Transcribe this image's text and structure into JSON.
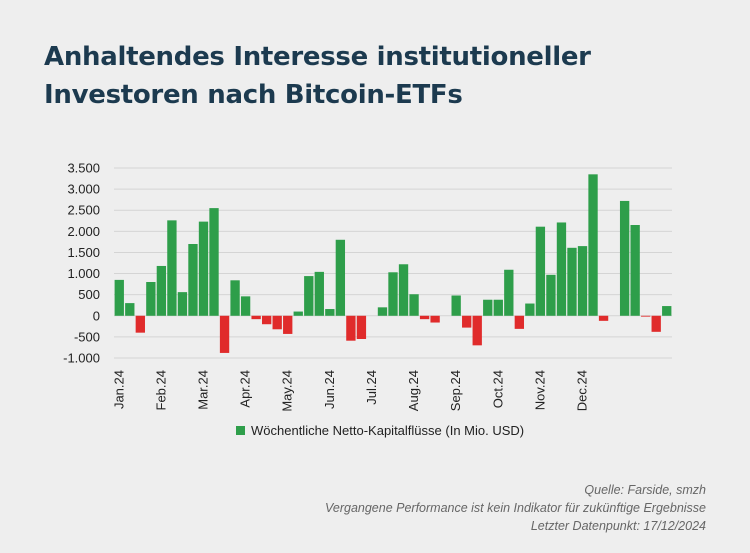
{
  "title": "Anhaltendes Interesse institutioneller Investoren nach Bitcoin-ETFs",
  "colors": {
    "positive": "#2e9e4a",
    "negative": "#e02b2b",
    "title": "#1c3a4f"
  },
  "chart_data": {
    "type": "bar",
    "title": "",
    "xlabel": "",
    "ylabel": "",
    "ylim": [
      -1000,
      3500
    ],
    "yticks": [
      -1000,
      -500,
      0,
      500,
      1000,
      1500,
      2000,
      2500,
      3000,
      3500
    ],
    "ytick_labels": [
      "-1.000",
      "-500",
      "0",
      "500",
      "1.000",
      "1.500",
      "2.000",
      "2.500",
      "3.000",
      "3.500"
    ],
    "grid": true,
    "legend": "bottom",
    "series_name": "Wöchentliche Netto-Kapitalflüsse (In Mio. USD)",
    "month_labels": [
      {
        "label": "Jan.24",
        "index": 0
      },
      {
        "label": "Feb.24",
        "index": 4
      },
      {
        "label": "Mar.24",
        "index": 8
      },
      {
        "label": "Apr.24",
        "index": 12
      },
      {
        "label": "May.24",
        "index": 16
      },
      {
        "label": "Jun.24",
        "index": 20
      },
      {
        "label": "Jul.24",
        "index": 24
      },
      {
        "label": "Aug.24",
        "index": 28
      },
      {
        "label": "Sep.24",
        "index": 32
      },
      {
        "label": "Oct.24",
        "index": 36
      },
      {
        "label": "Nov.24",
        "index": 40
      },
      {
        "label": "Dec.24",
        "index": 44
      }
    ],
    "values": [
      850,
      300,
      -400,
      800,
      1180,
      2260,
      560,
      1700,
      2230,
      2550,
      -880,
      840,
      460,
      -80,
      -200,
      -320,
      -430,
      100,
      940,
      1040,
      160,
      1800,
      -590,
      -550,
      0,
      200,
      1030,
      1220,
      510,
      -80,
      -160,
      0,
      480,
      -280,
      -700,
      380,
      380,
      1090,
      -310,
      290,
      2110,
      970,
      2210,
      1610,
      1650,
      3350,
      -120,
      0,
      2720,
      2150,
      -20,
      -380,
      230
    ]
  },
  "footer": {
    "source": "Quelle: Farside, smzh",
    "disclaimer": "Vergangene Performance ist kein Indikator für zukünftige Ergebnisse",
    "last_datapoint": "Letzter Datenpunkt: 17/12/2024"
  }
}
